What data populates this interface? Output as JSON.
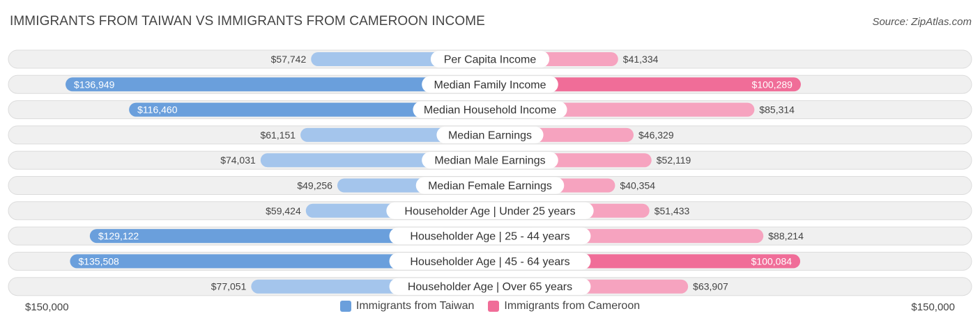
{
  "title": "IMMIGRANTS FROM TAIWAN VS IMMIGRANTS FROM CAMEROON INCOME",
  "source": "Source: ZipAtlas.com",
  "axis": {
    "left_label": "$150,000",
    "right_label": "$150,000"
  },
  "legend": {
    "taiwan": "Immigrants from Taiwan",
    "cameroon": "Immigrants from Cameroon"
  },
  "colors": {
    "taiwan_dark": "#6a9fdc",
    "taiwan_light": "#a4c5ec",
    "cameroon_dark": "#f06d98",
    "cameroon_light": "#f6a3bf",
    "row_bg": "#f0f0f0",
    "row_border": "#dcdcdc"
  },
  "chart_data": {
    "type": "bar",
    "orientation": "horizontal-diverging",
    "max": 150000,
    "categories": [
      "Per Capita Income",
      "Median Family Income",
      "Median Household Income",
      "Median Earnings",
      "Median Male Earnings",
      "Median Female Earnings",
      "Householder Age | Under 25 years",
      "Householder Age | 25 - 44 years",
      "Householder Age | 45 - 64 years",
      "Householder Age | Over 65 years"
    ],
    "series": [
      {
        "name": "Immigrants from Taiwan",
        "values": [
          57742,
          136949,
          116460,
          61151,
          74031,
          49256,
          59424,
          129122,
          135508,
          77051
        ],
        "labels": [
          "$57,742",
          "$136,949",
          "$116,460",
          "$61,151",
          "$74,031",
          "$49,256",
          "$59,424",
          "$129,122",
          "$135,508",
          "$77,051"
        ]
      },
      {
        "name": "Immigrants from Cameroon",
        "values": [
          41334,
          100289,
          85314,
          46329,
          52119,
          40354,
          51433,
          88214,
          100084,
          63907
        ],
        "labels": [
          "$41,334",
          "$100,289",
          "$85,314",
          "$46,329",
          "$52,119",
          "$40,354",
          "$51,433",
          "$88,214",
          "$100,084",
          "$63,907"
        ]
      }
    ]
  }
}
